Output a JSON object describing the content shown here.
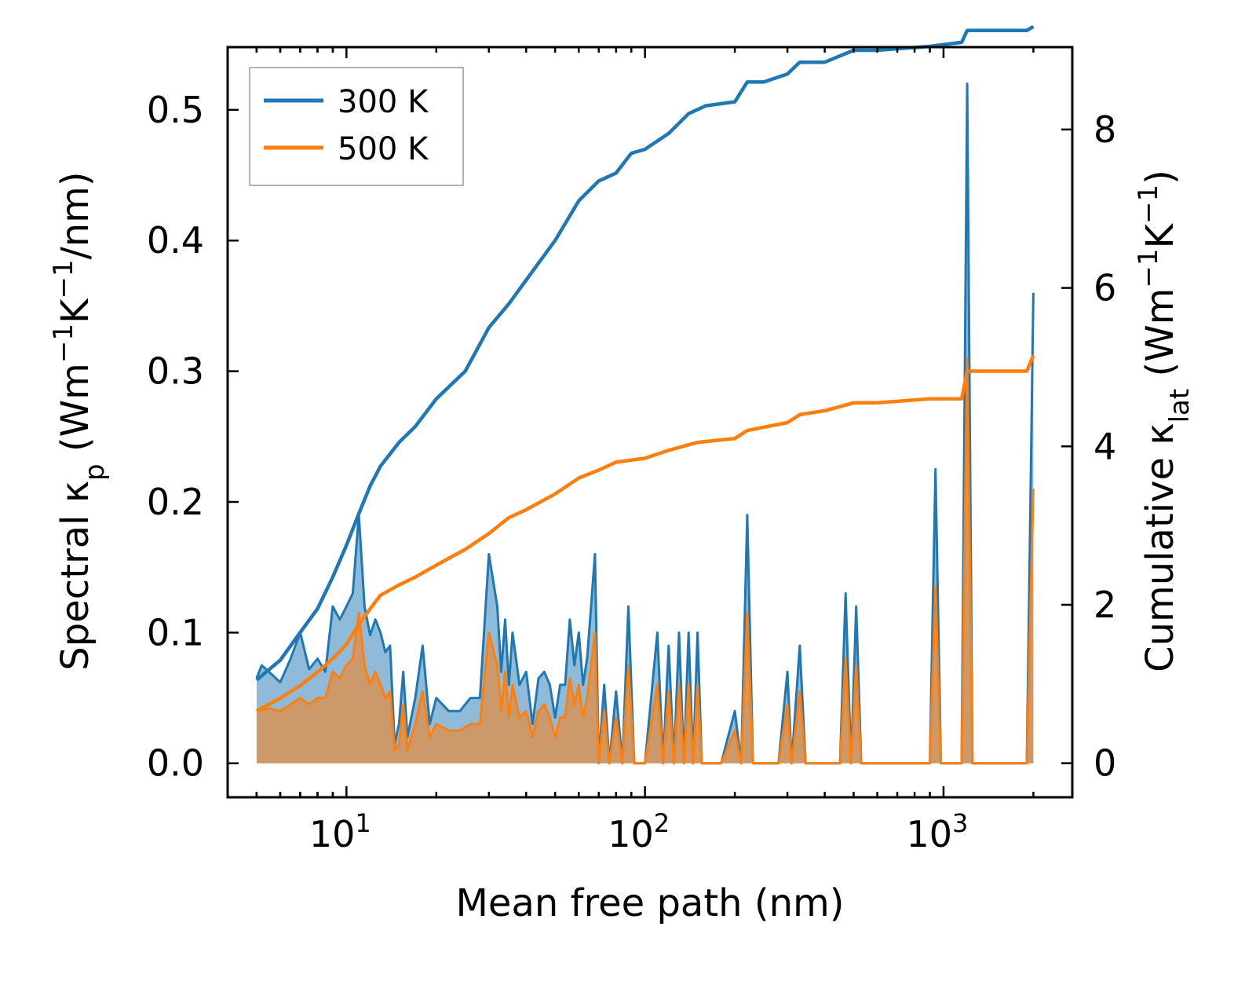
{
  "chart_data": {
    "type": "line",
    "xscale": "log",
    "xlabel": "Mean free path (nm)",
    "ylabel_left": "Spectral κp (Wm⁻¹K⁻¹/nm)",
    "ylabel_right": "Cumulative κlat (Wm⁻¹K⁻¹)",
    "ylabel_left_parts": {
      "pre": "Spectral κ",
      "sub": "p",
      "post1": " (Wm",
      "sup1": "−1",
      "post2": "K",
      "sup2": "−1",
      "post3": "/nm)"
    },
    "ylabel_right_parts": {
      "pre": "Cumulative κ",
      "sub": "lat",
      "post1": " (Wm",
      "sup1": "−1",
      "post2": "K",
      "sup2": "−1",
      "post3": ")"
    },
    "xlim": [
      4.0,
      2700
    ],
    "ylim_left": [
      -0.026,
      0.548
    ],
    "ylim_right": [
      -0.43,
      9.04
    ],
    "x_ticks": [
      {
        "value": 10,
        "base": "10",
        "exp": "1"
      },
      {
        "value": 100,
        "base": "10",
        "exp": "2"
      },
      {
        "value": 1000,
        "base": "10",
        "exp": "3"
      }
    ],
    "y_ticks_left": [
      "0.0",
      "0.1",
      "0.2",
      "0.3",
      "0.4",
      "0.5"
    ],
    "y_ticks_right": [
      "0",
      "2",
      "4",
      "6",
      "8"
    ],
    "legend": {
      "position": "top-left",
      "entries": [
        {
          "label": "300 K",
          "color": "#1f77b4"
        },
        {
          "label": "500 K",
          "color": "#ff7f0e"
        }
      ]
    },
    "series_cumulative": [
      {
        "name": "300 K",
        "axis": "right",
        "color": "#1f77b4",
        "points": [
          [
            5,
            1.05
          ],
          [
            6,
            1.3
          ],
          [
            7,
            1.65
          ],
          [
            8,
            1.95
          ],
          [
            9,
            2.35
          ],
          [
            10,
            2.75
          ],
          [
            11,
            3.15
          ],
          [
            12,
            3.5
          ],
          [
            13,
            3.75
          ],
          [
            15,
            4.05
          ],
          [
            17,
            4.25
          ],
          [
            20,
            4.6
          ],
          [
            25,
            4.95
          ],
          [
            30,
            5.5
          ],
          [
            35,
            5.8
          ],
          [
            40,
            6.1
          ],
          [
            50,
            6.6
          ],
          [
            60,
            7.1
          ],
          [
            70,
            7.35
          ],
          [
            80,
            7.45
          ],
          [
            90,
            7.7
          ],
          [
            100,
            7.75
          ],
          [
            120,
            7.95
          ],
          [
            140,
            8.2
          ],
          [
            160,
            8.3
          ],
          [
            200,
            8.35
          ],
          [
            220,
            8.6
          ],
          [
            250,
            8.6
          ],
          [
            300,
            8.7
          ],
          [
            330,
            8.85
          ],
          [
            400,
            8.85
          ],
          [
            500,
            9.0
          ],
          [
            600,
            9.0
          ],
          [
            900,
            9.05
          ],
          [
            1150,
            9.1
          ],
          [
            1200,
            9.25
          ],
          [
            1900,
            9.25
          ],
          [
            2000,
            9.3
          ]
        ]
      },
      {
        "name": "500 K",
        "axis": "right",
        "color": "#ff7f0e",
        "points": [
          [
            5,
            0.66
          ],
          [
            6,
            0.82
          ],
          [
            7,
            0.98
          ],
          [
            8,
            1.15
          ],
          [
            9,
            1.32
          ],
          [
            10,
            1.5
          ],
          [
            11,
            1.75
          ],
          [
            12,
            1.95
          ],
          [
            13,
            2.12
          ],
          [
            15,
            2.25
          ],
          [
            17,
            2.35
          ],
          [
            20,
            2.5
          ],
          [
            25,
            2.7
          ],
          [
            30,
            2.9
          ],
          [
            35,
            3.1
          ],
          [
            40,
            3.2
          ],
          [
            50,
            3.4
          ],
          [
            60,
            3.6
          ],
          [
            70,
            3.7
          ],
          [
            80,
            3.8
          ],
          [
            100,
            3.85
          ],
          [
            120,
            3.95
          ],
          [
            150,
            4.05
          ],
          [
            200,
            4.1
          ],
          [
            220,
            4.2
          ],
          [
            300,
            4.3
          ],
          [
            330,
            4.4
          ],
          [
            400,
            4.45
          ],
          [
            500,
            4.55
          ],
          [
            600,
            4.55
          ],
          [
            900,
            4.6
          ],
          [
            1150,
            4.6
          ],
          [
            1200,
            4.95
          ],
          [
            1900,
            4.95
          ],
          [
            2000,
            5.15
          ]
        ]
      }
    ],
    "series_spectral": [
      {
        "name": "300 K",
        "axis": "left",
        "color": "#1f77b4",
        "points": [
          [
            5,
            0.065
          ],
          [
            5.2,
            0.075
          ],
          [
            5.5,
            0.07
          ],
          [
            6,
            0.062
          ],
          [
            6.5,
            0.08
          ],
          [
            7,
            0.1
          ],
          [
            7.5,
            0.072
          ],
          [
            8,
            0.08
          ],
          [
            8.5,
            0.07
          ],
          [
            9,
            0.12
          ],
          [
            9.5,
            0.11
          ],
          [
            10,
            0.12
          ],
          [
            10.5,
            0.13
          ],
          [
            11,
            0.19
          ],
          [
            11.5,
            0.12
          ],
          [
            12,
            0.098
          ],
          [
            12.5,
            0.11
          ],
          [
            13,
            0.1
          ],
          [
            13.5,
            0.085
          ],
          [
            14,
            0.09
          ],
          [
            14.5,
            0.015
          ],
          [
            15,
            0.03
          ],
          [
            15.5,
            0.07
          ],
          [
            16,
            0.02
          ],
          [
            17,
            0.05
          ],
          [
            18,
            0.09
          ],
          [
            19,
            0.03
          ],
          [
            20,
            0.05
          ],
          [
            22,
            0.04
          ],
          [
            24,
            0.04
          ],
          [
            26,
            0.05
          ],
          [
            28,
            0.05
          ],
          [
            30,
            0.16
          ],
          [
            32,
            0.12
          ],
          [
            33,
            0.07
          ],
          [
            34,
            0.11
          ],
          [
            35,
            0.06
          ],
          [
            36,
            0.1
          ],
          [
            38,
            0.06
          ],
          [
            40,
            0.07
          ],
          [
            42,
            0.03
          ],
          [
            44,
            0.065
          ],
          [
            46,
            0.07
          ],
          [
            48,
            0.06
          ],
          [
            50,
            0.035
          ],
          [
            52,
            0.06
          ],
          [
            54,
            0.06
          ],
          [
            56,
            0.11
          ],
          [
            58,
            0.075
          ],
          [
            60,
            0.1
          ],
          [
            62,
            0.06
          ],
          [
            64,
            0.08
          ],
          [
            66,
            0.12
          ],
          [
            68,
            0.16
          ],
          [
            70,
            0.0
          ],
          [
            73,
            0.06
          ],
          [
            76,
            0.0
          ],
          [
            80,
            0.055
          ],
          [
            84,
            0.0
          ],
          [
            88,
            0.12
          ],
          [
            92,
            0.0
          ],
          [
            100,
            0.0
          ],
          [
            110,
            0.1
          ],
          [
            115,
            0.0
          ],
          [
            120,
            0.09
          ],
          [
            125,
            0.0
          ],
          [
            130,
            0.1
          ],
          [
            135,
            0.0
          ],
          [
            140,
            0.1
          ],
          [
            145,
            0.0
          ],
          [
            150,
            0.1
          ],
          [
            155,
            0.0
          ],
          [
            160,
            0.0
          ],
          [
            180,
            0.0
          ],
          [
            200,
            0.04
          ],
          [
            210,
            0.0
          ],
          [
            220,
            0.19
          ],
          [
            230,
            0.0
          ],
          [
            250,
            0.0
          ],
          [
            280,
            0.0
          ],
          [
            300,
            0.07
          ],
          [
            310,
            0.0
          ],
          [
            330,
            0.09
          ],
          [
            345,
            0.0
          ],
          [
            400,
            0.0
          ],
          [
            450,
            0.0
          ],
          [
            470,
            0.13
          ],
          [
            490,
            0.0
          ],
          [
            510,
            0.12
          ],
          [
            530,
            0.0
          ],
          [
            800,
            0.0
          ],
          [
            900,
            0.0
          ],
          [
            940,
            0.225
          ],
          [
            980,
            0.0
          ],
          [
            1150,
            0.0
          ],
          [
            1200,
            0.52
          ],
          [
            1250,
            0.0
          ],
          [
            1900,
            0.0
          ],
          [
            2000,
            0.36
          ]
        ]
      },
      {
        "name": "500 K",
        "axis": "left",
        "color": "#ff7f0e",
        "points": [
          [
            5,
            0.04
          ],
          [
            5.5,
            0.042
          ],
          [
            6,
            0.04
          ],
          [
            6.5,
            0.045
          ],
          [
            7,
            0.05
          ],
          [
            7.5,
            0.045
          ],
          [
            8,
            0.05
          ],
          [
            8.5,
            0.05
          ],
          [
            9,
            0.07
          ],
          [
            9.5,
            0.065
          ],
          [
            10,
            0.075
          ],
          [
            10.5,
            0.08
          ],
          [
            11,
            0.115
          ],
          [
            11.5,
            0.075
          ],
          [
            12,
            0.06
          ],
          [
            12.5,
            0.07
          ],
          [
            13,
            0.06
          ],
          [
            13.5,
            0.05
          ],
          [
            14,
            0.055
          ],
          [
            14.5,
            0.01
          ],
          [
            15,
            0.015
          ],
          [
            15.5,
            0.045
          ],
          [
            16,
            0.01
          ],
          [
            17,
            0.03
          ],
          [
            18,
            0.055
          ],
          [
            19,
            0.02
          ],
          [
            20,
            0.03
          ],
          [
            22,
            0.025
          ],
          [
            24,
            0.025
          ],
          [
            26,
            0.03
          ],
          [
            28,
            0.03
          ],
          [
            30,
            0.1
          ],
          [
            32,
            0.075
          ],
          [
            33,
            0.04
          ],
          [
            34,
            0.07
          ],
          [
            35,
            0.035
          ],
          [
            36,
            0.06
          ],
          [
            38,
            0.035
          ],
          [
            40,
            0.04
          ],
          [
            42,
            0.02
          ],
          [
            44,
            0.04
          ],
          [
            46,
            0.045
          ],
          [
            48,
            0.035
          ],
          [
            50,
            0.02
          ],
          [
            52,
            0.035
          ],
          [
            54,
            0.035
          ],
          [
            56,
            0.065
          ],
          [
            58,
            0.045
          ],
          [
            60,
            0.06
          ],
          [
            62,
            0.035
          ],
          [
            64,
            0.05
          ],
          [
            66,
            0.075
          ],
          [
            68,
            0.1
          ],
          [
            70,
            0.0
          ],
          [
            73,
            0.04
          ],
          [
            76,
            0.0
          ],
          [
            80,
            0.035
          ],
          [
            84,
            0.0
          ],
          [
            88,
            0.075
          ],
          [
            92,
            0.0
          ],
          [
            100,
            0.0
          ],
          [
            110,
            0.06
          ],
          [
            115,
            0.0
          ],
          [
            120,
            0.055
          ],
          [
            125,
            0.0
          ],
          [
            130,
            0.06
          ],
          [
            135,
            0.0
          ],
          [
            140,
            0.06
          ],
          [
            145,
            0.0
          ],
          [
            150,
            0.06
          ],
          [
            155,
            0.0
          ],
          [
            160,
            0.0
          ],
          [
            180,
            0.0
          ],
          [
            200,
            0.025
          ],
          [
            210,
            0.0
          ],
          [
            220,
            0.115
          ],
          [
            230,
            0.0
          ],
          [
            250,
            0.0
          ],
          [
            280,
            0.0
          ],
          [
            300,
            0.045
          ],
          [
            310,
            0.0
          ],
          [
            330,
            0.055
          ],
          [
            345,
            0.0
          ],
          [
            400,
            0.0
          ],
          [
            450,
            0.0
          ],
          [
            470,
            0.08
          ],
          [
            490,
            0.0
          ],
          [
            510,
            0.075
          ],
          [
            530,
            0.0
          ],
          [
            800,
            0.0
          ],
          [
            900,
            0.0
          ],
          [
            940,
            0.135
          ],
          [
            980,
            0.0
          ],
          [
            1150,
            0.0
          ],
          [
            1200,
            0.31
          ],
          [
            1250,
            0.0
          ],
          [
            1900,
            0.0
          ],
          [
            2000,
            0.21
          ]
        ]
      }
    ]
  }
}
